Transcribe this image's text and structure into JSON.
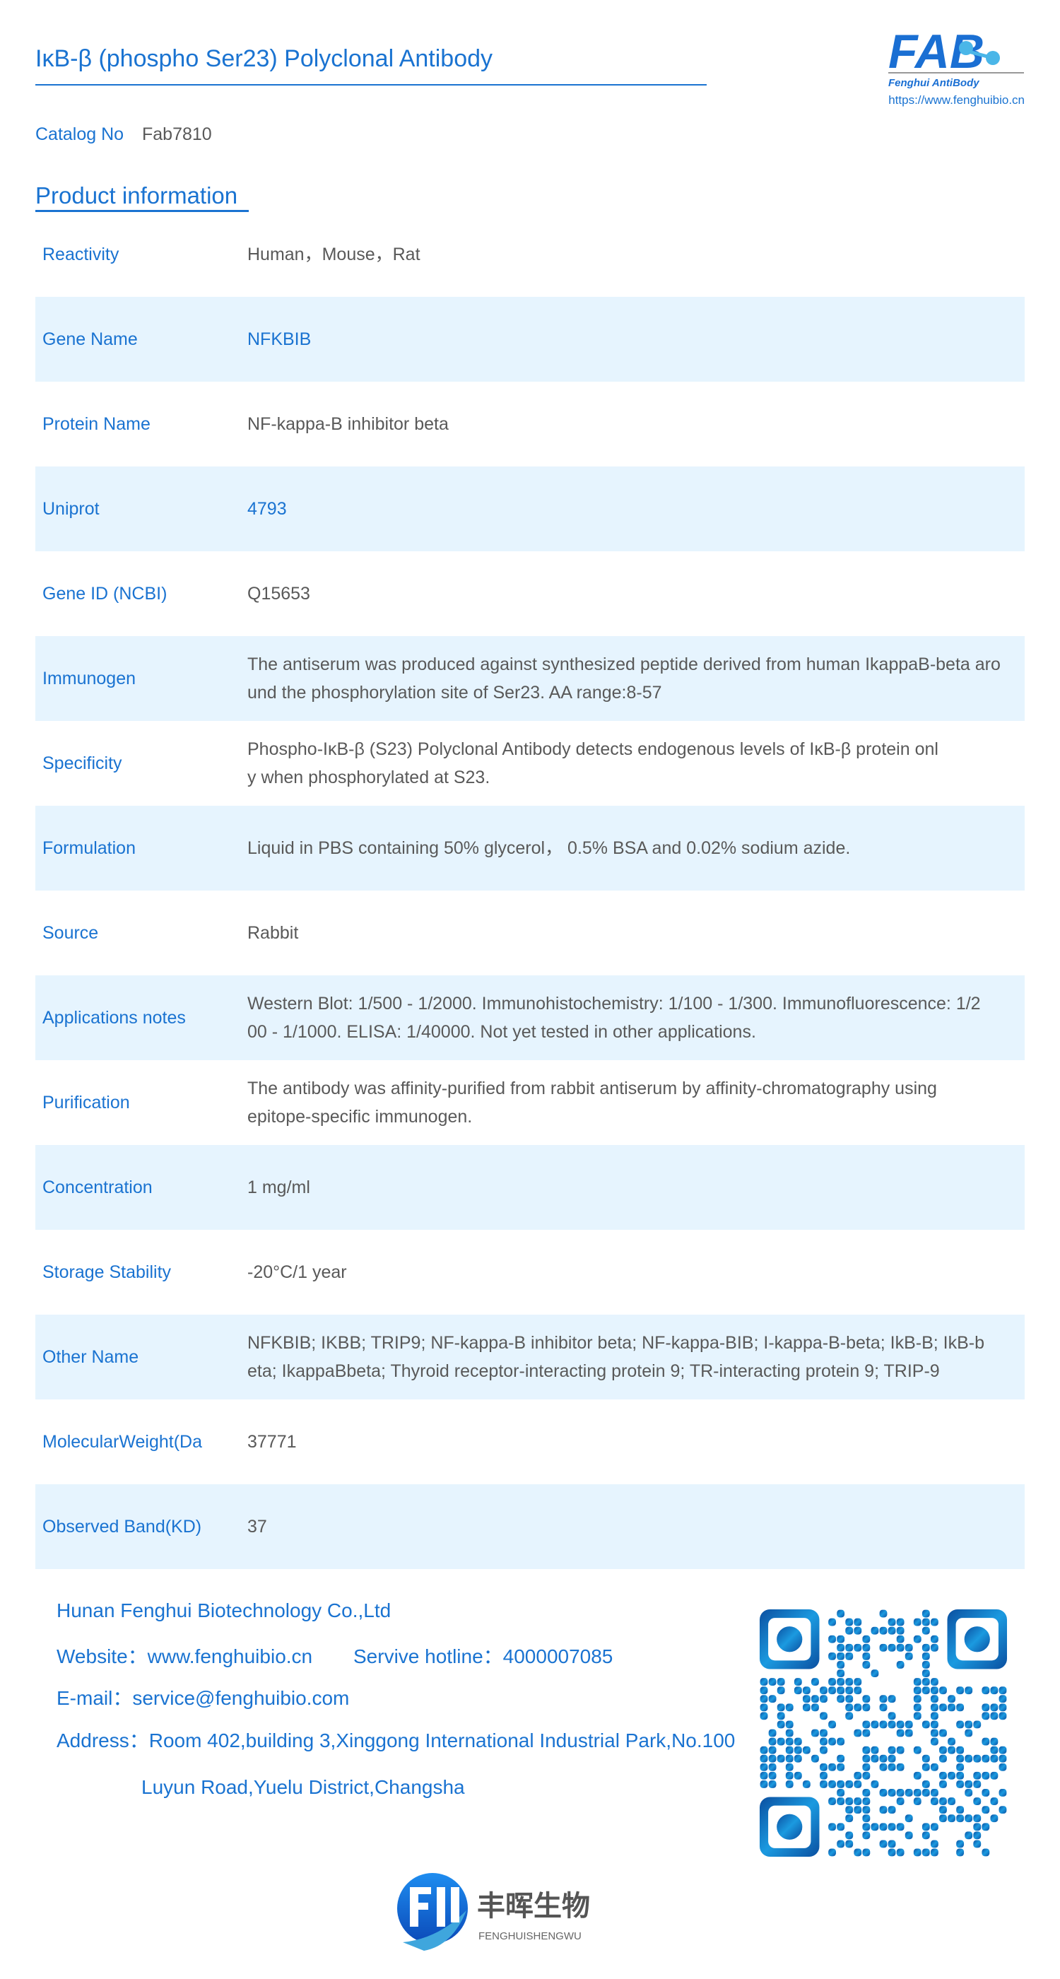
{
  "header": {
    "title": "IκB-β (phospho Ser23) Polyclonal Antibody",
    "logo_text": "FAB",
    "logo_subtitle": "Fenghui AntiBody",
    "logo_url": "https://www.fenghuibio.cn"
  },
  "catalog": {
    "label": "Catalog No",
    "value": "Fab7810"
  },
  "section_title": "Product information",
  "rows": [
    {
      "label": "Reactivity",
      "lines": [
        "Human，Mouse，Rat"
      ]
    },
    {
      "label": "Gene Name",
      "lines": [
        "NFKBIB"
      ]
    },
    {
      "label": "Protein Name",
      "lines": [
        "NF-kappa-B inhibitor beta"
      ]
    },
    {
      "label": "Uniprot",
      "lines": [
        "4793"
      ]
    },
    {
      "label": "Gene ID (NCBI)",
      "lines": [
        "Q15653"
      ]
    },
    {
      "label": "Immunogen",
      "lines": [
        "The antiserum was produced against synthesized peptide derived from human IkappaB-beta aro",
        "und the phosphorylation site of Ser23. AA range:8-57"
      ]
    },
    {
      "label": "Specificity",
      "lines": [
        "Phospho-IκB-β (S23) Polyclonal Antibody detects endogenous levels of IκB-β protein onl",
        "y when phosphorylated at S23."
      ]
    },
    {
      "label": "Formulation",
      "lines": [
        "Liquid in PBS containing 50% glycerol， 0.5% BSA and 0.02% sodium azide."
      ]
    },
    {
      "label": "Source",
      "lines": [
        "Rabbit"
      ]
    },
    {
      "label": "Applications notes",
      "lines": [
        "Western Blot: 1/500 - 1/2000. Immunohistochemistry: 1/100 - 1/300. Immunofluorescence: 1/2",
        "00 - 1/1000. ELISA: 1/40000. Not yet tested in other applications."
      ]
    },
    {
      "label": "Purification",
      "lines": [
        "The antibody was affinity-purified from rabbit antiserum by affinity-chromatography using",
        "epitope-specific immunogen."
      ]
    },
    {
      "label": "Concentration",
      "lines": [
        "1 mg/ml"
      ]
    },
    {
      "label": "Storage Stability",
      "lines": [
        "-20°C/1 year"
      ]
    },
    {
      "label": "Other Name",
      "lines": [
        "NFKBIB; IKBB; TRIP9; NF-kappa-B inhibitor beta; NF-kappa-BIB; I-kappa-B-beta; IkB-B; IkB-b",
        "eta; IkappaBbeta; Thyroid receptor-interacting protein 9; TR-interacting protein 9; TRIP-9"
      ]
    },
    {
      "label": "MolecularWeight(Da",
      "lines": [
        "37771"
      ]
    },
    {
      "label": "Observed Band(KD)",
      "lines": [
        "37"
      ]
    }
  ],
  "footer": {
    "company": "Hunan Fenghui Biotechnology Co.,Ltd",
    "website": "Website：www.fenghuibio.cn",
    "hotline": "Servive hotline：4000007085",
    "email": "E-mail：service@fenghuibio.com",
    "address_line1": "Address：Room 402,building 3,Xinggong International Industrial Park,No.100",
    "address_line2": "Luyun Road,Yuelu District,Changsha"
  },
  "bottom_logo": {
    "chinese": "丰晖生物",
    "pinyin": "FENGHUISHENGWU"
  },
  "colors": {
    "accent": "#1a73d1",
    "row_alt": "#e6f4fe",
    "text": "#595959"
  }
}
